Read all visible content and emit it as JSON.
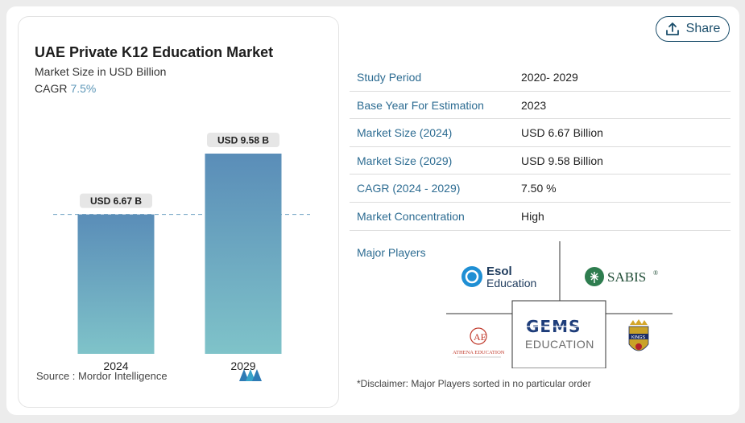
{
  "chart_data": {
    "type": "bar",
    "title": "UAE Private K12 Education Market",
    "subtitle": "Market Size in USD Billion",
    "cagr_label": "CAGR",
    "cagr_value": "7.5%",
    "categories": [
      "2024",
      "2029"
    ],
    "values": [
      6.67,
      9.58
    ],
    "data_labels": [
      "USD 6.67 B",
      "USD 9.58 B"
    ],
    "ylim": [
      0,
      9.58
    ],
    "reference_line": 6.67,
    "grid": false,
    "colors": {
      "bar_top": "#5a8db8",
      "bar_bottom": "#7fc3c9",
      "label_bg": "#e6e6e6",
      "dash": "#6a9fc0"
    }
  },
  "source": {
    "label": "Source :",
    "name": "Mordor Intelligence"
  },
  "share": {
    "label": "Share",
    "icon": "share-upload-icon"
  },
  "stats": [
    {
      "key": "Study Period",
      "value": "2020- 2029"
    },
    {
      "key": "Base Year For Estimation",
      "value": "2023"
    },
    {
      "key": "Market Size (2024)",
      "value": "USD 6.67 Billion"
    },
    {
      "key": "Market Size (2029)",
      "value": "USD 9.58 Billion"
    },
    {
      "key": "CAGR (2024 - 2029)",
      "value": "7.50 %"
    },
    {
      "key": "Market Concentration",
      "value": "High"
    }
  ],
  "players": {
    "label": "Major Players",
    "items": [
      {
        "name": "Esol Education",
        "line1": "Esol",
        "line2": "Education"
      },
      {
        "name": "SABIS",
        "text": "SABIS",
        "mark": "®"
      },
      {
        "name": "GEMS Education",
        "line1": "GEMS",
        "line2": "EDUCATION"
      },
      {
        "name": "Athena Education",
        "text": "ATHENA EDUCATION"
      },
      {
        "name": "Kings' Education",
        "text": "KINGS"
      }
    ],
    "disclaimer": "*Disclaimer: Major Players sorted in no particular order"
  }
}
